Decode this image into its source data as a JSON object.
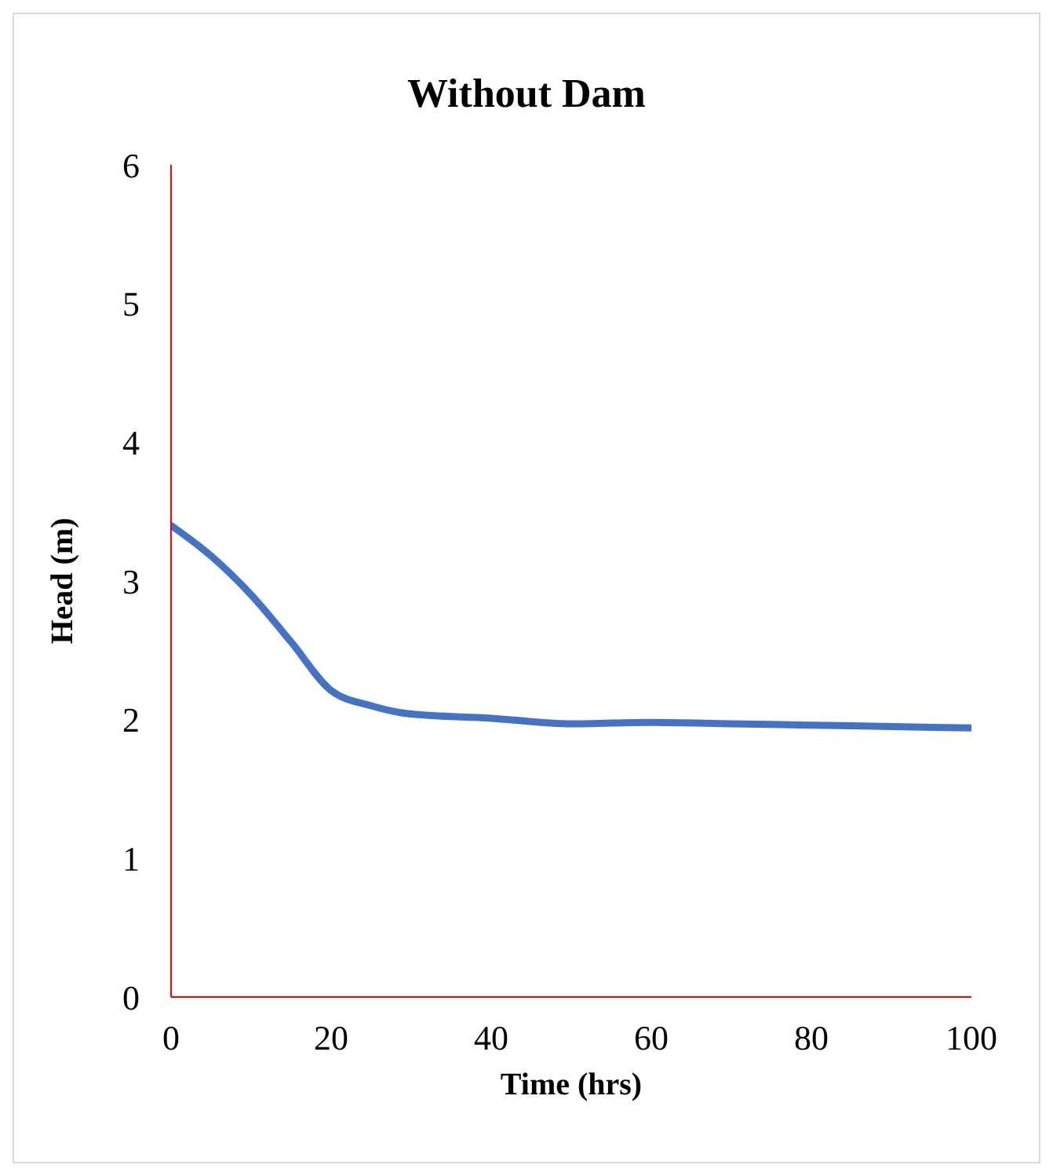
{
  "chart_data": {
    "type": "line",
    "title": "Without Dam",
    "xlabel": "Time (hrs)",
    "ylabel": "Head (m)",
    "x": [
      0,
      5,
      10,
      15,
      20,
      25,
      30,
      40,
      50,
      60,
      70,
      80,
      90,
      100
    ],
    "series": [
      {
        "color": "#4472c4",
        "values": [
          3.4,
          3.18,
          2.9,
          2.56,
          2.21,
          2.1,
          2.04,
          2.01,
          1.97,
          1.98,
          1.97,
          1.96,
          1.95,
          1.94
        ]
      }
    ],
    "xlim": [
      0,
      100
    ],
    "xticks": [
      0,
      20,
      40,
      60,
      80,
      100
    ],
    "ylim": [
      0,
      6
    ],
    "yticks": [
      0,
      1,
      2,
      3,
      4,
      5,
      6
    ],
    "grid": false,
    "legend": false,
    "marker": "none",
    "line_style": "solid"
  }
}
